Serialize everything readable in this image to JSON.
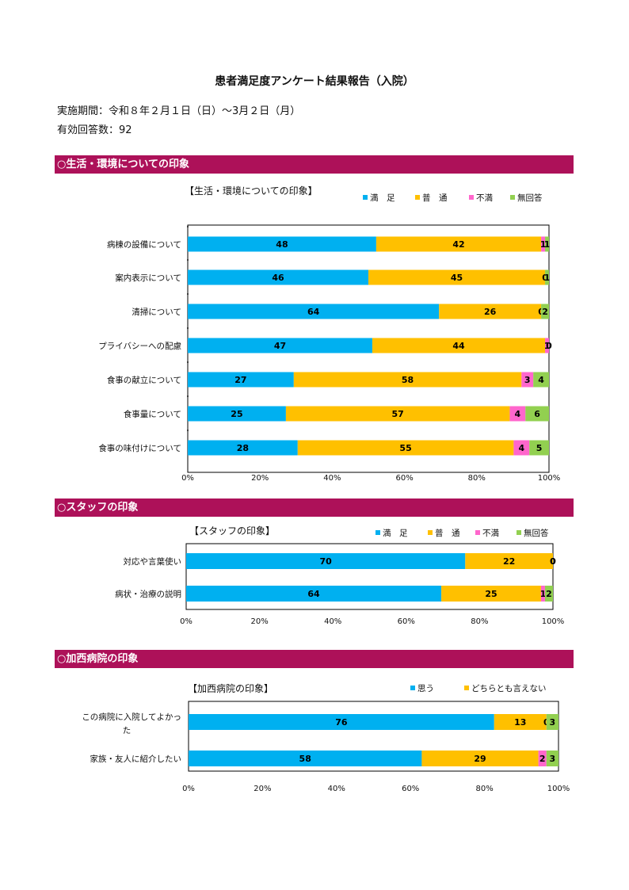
{
  "report": {
    "title": "患者満足度アンケート結果報告（入院）",
    "period": "実施期間：令和８年２月１日（日）～3月２日（月）",
    "responses": "有効回答数：92"
  },
  "colors": {
    "section_bar": "#ad1159",
    "satisfied": "#00b0f0",
    "normal": "#ffc000",
    "dissatisfied": "#ff66cc",
    "no_answer": "#92d050"
  },
  "sections": [
    {
      "heading": "○生活・環境についての印象"
    },
    {
      "heading": "○スタッフの印象"
    },
    {
      "heading": "○加西病院の印象"
    }
  ],
  "chart_data": [
    {
      "type": "bar",
      "stacked": "percent",
      "orientation": "horizontal",
      "title": "【生活・環境についての印象】",
      "categories": [
        "病棟の設備について",
        "案内表示について",
        "清掃について",
        "プライバシーへの配慮",
        "食事の献立について",
        "食事量について",
        "食事の味付けについて"
      ],
      "series": [
        {
          "name": "満　足",
          "color": "#00b0f0",
          "values": [
            48,
            46,
            64,
            47,
            27,
            25,
            28
          ]
        },
        {
          "name": "普　通",
          "color": "#ffc000",
          "values": [
            42,
            45,
            26,
            44,
            58,
            57,
            55
          ]
        },
        {
          "name": "不満",
          "color": "#ff66cc",
          "values": [
            1,
            0,
            0,
            1,
            3,
            4,
            4
          ]
        },
        {
          "name": "無回答",
          "color": "#92d050",
          "values": [
            1,
            1,
            2,
            0,
            4,
            6,
            5
          ]
        }
      ],
      "xticks": [
        "0%",
        "20%",
        "40%",
        "60%",
        "80%",
        "100%"
      ],
      "xlim": [
        0,
        100
      ],
      "legend": "top-right"
    },
    {
      "type": "bar",
      "stacked": "percent",
      "orientation": "horizontal",
      "title": "【スタッフの印象】",
      "categories": [
        "対応や言葉使い",
        "病状・治療の説明"
      ],
      "series": [
        {
          "name": "満　足",
          "color": "#00b0f0",
          "values": [
            70,
            64
          ]
        },
        {
          "name": "普　通",
          "color": "#ffc000",
          "values": [
            22,
            25
          ]
        },
        {
          "name": "不満",
          "color": "#ff66cc",
          "values": [
            0,
            1
          ]
        },
        {
          "name": "無回答",
          "color": "#92d050",
          "values": [
            0,
            2
          ]
        }
      ],
      "xticks": [
        "0%",
        "20%",
        "40%",
        "60%",
        "80%",
        "100%"
      ],
      "xlim": [
        0,
        100
      ],
      "legend": "top-right"
    },
    {
      "type": "bar",
      "stacked": "percent",
      "orientation": "horizontal",
      "title": "【加西病院の印象】",
      "categories": [
        "この病院に入院してよかった",
        "家族・友人に紹介したい"
      ],
      "series": [
        {
          "name": "思う",
          "color": "#00b0f0",
          "values": [
            76,
            58
          ]
        },
        {
          "name": "どちらとも言えない",
          "color": "#ffc000",
          "values": [
            13,
            29
          ]
        },
        {
          "name": "",
          "color": "#ff66cc",
          "values": [
            0,
            2
          ]
        },
        {
          "name": "",
          "color": "#92d050",
          "values": [
            3,
            3
          ]
        }
      ],
      "xticks": [
        "0%",
        "20%",
        "40%",
        "60%",
        "80%",
        "100%"
      ],
      "xlim": [
        0,
        100
      ],
      "legend": "top-right"
    }
  ]
}
